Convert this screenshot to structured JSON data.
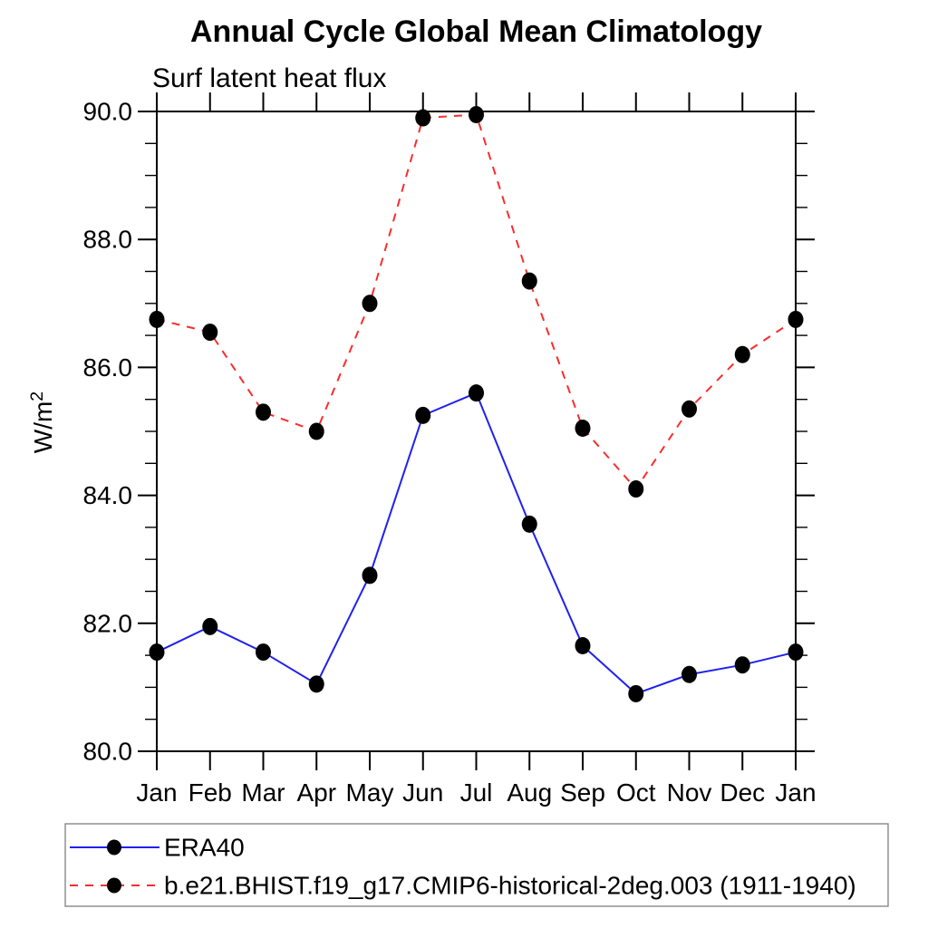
{
  "title": "Annual Cycle Global Mean Climatology",
  "subtitle": "Surf latent heat flux",
  "chart_data": {
    "type": "line",
    "categories": [
      "Jan",
      "Feb",
      "Mar",
      "Apr",
      "May",
      "Jun",
      "Jul",
      "Aug",
      "Sep",
      "Oct",
      "Nov",
      "Dec",
      "Jan"
    ],
    "xlabel": "",
    "ylabel": "W/m²",
    "ylim": [
      80.0,
      90.0
    ],
    "ytick_major_interval": 2.0,
    "ytick_minor_interval": 0.5,
    "ytick_labels": [
      "80.0",
      "82.0",
      "84.0",
      "86.0",
      "88.0",
      "90.0"
    ],
    "grid": false,
    "legend_position": "bottom-left-box",
    "series": [
      {
        "name": "ERA40",
        "line_style": "solid",
        "color": "#2020f0",
        "marker": "filled-circle",
        "marker_color": "#000000",
        "values": [
          81.55,
          81.95,
          81.55,
          81.05,
          82.75,
          85.25,
          85.6,
          83.55,
          81.65,
          80.9,
          81.2,
          81.35,
          81.55
        ]
      },
      {
        "name": "b.e21.BHIST.f19_g17.CMIP6-historical-2deg.003 (1911-1940)",
        "line_style": "dashed",
        "color": "#f92d2d",
        "marker": "filled-circle",
        "marker_color": "#000000",
        "values": [
          86.75,
          86.55,
          85.3,
          85.0,
          87.0,
          89.9,
          89.95,
          87.35,
          85.05,
          84.1,
          85.35,
          86.2,
          86.75
        ]
      }
    ],
    "frame_color": "#000000",
    "tick_label_color": "#000000"
  }
}
